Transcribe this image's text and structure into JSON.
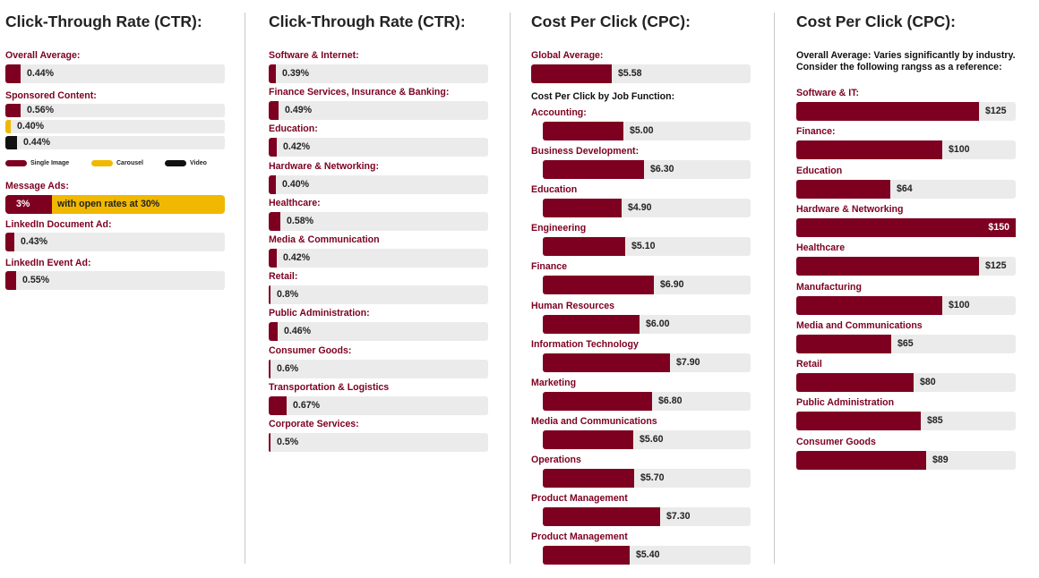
{
  "colors": {
    "maroon": "#7d0020",
    "yellow": "#f0b800",
    "black": "#111111",
    "track": "#ebebeb"
  },
  "panel1": {
    "title": "Click-Through Rate (CTR):",
    "overall": {
      "label": "Overall Average:",
      "value": "0.44%",
      "pct": 0.44
    },
    "sponsored": {
      "label": "Sponsored Content:",
      "rows": [
        {
          "value": "0.56%",
          "pct": 0.56,
          "type": "single"
        },
        {
          "value": "0.40%",
          "pct": 0.4,
          "type": "carousel"
        },
        {
          "value": "0.44%",
          "pct": 0.44,
          "type": "video"
        }
      ],
      "legend": {
        "single": "Single Image",
        "carousel": "Carousel",
        "video": "Video"
      }
    },
    "message_ads": {
      "label": "Message Ads:",
      "value": "3%",
      "text": "with open rates at 30%"
    },
    "document_ad": {
      "label": "LinkedIn Document Ad:",
      "value": "0.43%",
      "pct": 0.43
    },
    "event_ad": {
      "label": "LinkedIn Event Ad:",
      "value": "0.55%",
      "pct": 0.55
    }
  },
  "panel2": {
    "title": "Click-Through Rate (CTR):",
    "items": [
      {
        "label": "Software & Internet:",
        "value": "0.39%",
        "pct": 0.39
      },
      {
        "label": "Finance Services, Insurance & Banking:",
        "value": "0.49%",
        "pct": 0.49
      },
      {
        "label": "Education:",
        "value": "0.42%",
        "pct": 0.42
      },
      {
        "label": "Hardware & Networking:",
        "value": "0.40%",
        "pct": 0.4
      },
      {
        "label": "Healthcare:",
        "value": "0.58%",
        "pct": 0.58
      },
      {
        "label": "Media & Communication",
        "value": "0.42%",
        "pct": 0.42
      },
      {
        "label": "Retail:",
        "value": "0.8%",
        "pct": 0.8
      },
      {
        "label": "Public Administration:",
        "value": "0.46%",
        "pct": 0.46
      },
      {
        "label": "Consumer Goods:",
        "value": "0.6%",
        "pct": 0.6
      },
      {
        "label": "Transportation & Logistics",
        "value": "0.67%",
        "pct": 0.67
      },
      {
        "label": "Corporate Services:",
        "value": "0.5%",
        "pct": 0.5
      }
    ]
  },
  "panel3": {
    "title": "Cost Per Click (CPC):",
    "global": {
      "label": "Global Average:",
      "value": "$5.58",
      "amount": 5.58
    },
    "subheading": "Cost Per Click by Job Function:",
    "items": [
      {
        "label": "Accounting:",
        "value": "$5.00",
        "amount": 5.0
      },
      {
        "label": "Business Development:",
        "value": "$6.30",
        "amount": 6.3
      },
      {
        "label": "Education",
        "value": "$4.90",
        "amount": 4.9
      },
      {
        "label": "Engineering",
        "value": "$5.10",
        "amount": 5.1
      },
      {
        "label": "Finance",
        "value": "$6.90",
        "amount": 6.9
      },
      {
        "label": "Human Resources",
        "value": "$6.00",
        "amount": 6.0
      },
      {
        "label": "Information Technology",
        "value": "$7.90",
        "amount": 7.9
      },
      {
        "label": "Marketing",
        "value": "$6.80",
        "amount": 6.8
      },
      {
        "label": "Media and Communications",
        "value": "$5.60",
        "amount": 5.6
      },
      {
        "label": "Operations",
        "value": "$5.70",
        "amount": 5.7
      },
      {
        "label": "Product Management",
        "value": "$7.30",
        "amount": 7.3
      },
      {
        "label": "Product Management",
        "value": "$5.40",
        "amount": 5.4
      }
    ]
  },
  "panel4": {
    "title": "Cost Per Click (CPC):",
    "note_line1": "Overall Average: Varies significantly by industry.",
    "note_line2": "Consider the following rangss as a reference:",
    "items": [
      {
        "label": "Software & IT:",
        "value": "$125",
        "amount": 125
      },
      {
        "label": "Finance:",
        "value": "$100",
        "amount": 100
      },
      {
        "label": "Education",
        "value": "$64",
        "amount": 64
      },
      {
        "label": "Hardware & Networking",
        "value": "$150",
        "amount": 150
      },
      {
        "label": "Healthcare",
        "value": "$125",
        "amount": 125
      },
      {
        "label": "Manufacturing",
        "value": "$100",
        "amount": 100
      },
      {
        "label": "Media and Communications",
        "value": "$65",
        "amount": 65
      },
      {
        "label": "Retail",
        "value": "$80",
        "amount": 80
      },
      {
        "label": "Public Administration",
        "value": "$85",
        "amount": 85
      },
      {
        "label": "Consumer Goods",
        "value": "$89",
        "amount": 89
      }
    ]
  },
  "chart_data": [
    {
      "type": "bar",
      "title": "Click-Through Rate (CTR):",
      "categories": [
        "Overall Average:",
        "Sponsored Content: Single Image",
        "Sponsored Content: Carousel",
        "Sponsored Content: Video",
        "LinkedIn Document Ad:",
        "LinkedIn Event Ad:"
      ],
      "values": [
        0.44,
        0.56,
        0.4,
        0.44,
        0.43,
        0.55
      ],
      "annotations": [
        "Message Ads: 3% with open rates at 30%"
      ]
    },
    {
      "type": "bar",
      "title": "Click-Through Rate (CTR):",
      "categories": [
        "Software & Internet:",
        "Finance Services, Insurance & Banking:",
        "Education:",
        "Hardware & Networking:",
        "Healthcare:",
        "Media & Communication",
        "Retail:",
        "Public Administration:",
        "Consumer Goods:",
        "Transportation & Logistics",
        "Corporate Services:"
      ],
      "values": [
        0.39,
        0.49,
        0.42,
        0.4,
        0.58,
        0.42,
        0.8,
        0.46,
        0.6,
        0.67,
        0.5
      ]
    },
    {
      "type": "bar",
      "title": "Cost Per Click (CPC):",
      "categories": [
        "Global Average:",
        "Accounting:",
        "Business Development:",
        "Education",
        "Engineering",
        "Finance",
        "Human Resources",
        "Information Technology",
        "Marketing",
        "Media and Communications",
        "Operations",
        "Product Management",
        "Product Management"
      ],
      "values": [
        5.58,
        5.0,
        6.3,
        4.9,
        5.1,
        6.9,
        6.0,
        7.9,
        6.8,
        5.6,
        5.7,
        7.3,
        5.4
      ]
    },
    {
      "type": "bar",
      "title": "Cost Per Click (CPC):",
      "categories": [
        "Software & IT:",
        "Finance:",
        "Education",
        "Hardware & Networking",
        "Healthcare",
        "Manufacturing",
        "Media and Communications",
        "Retail",
        "Public Administration",
        "Consumer Goods"
      ],
      "values": [
        125,
        100,
        64,
        150,
        125,
        100,
        65,
        80,
        85,
        89
      ]
    }
  ]
}
